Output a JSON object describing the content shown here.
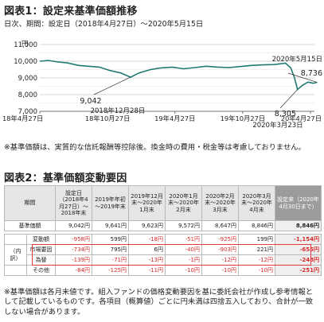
{
  "fig1": {
    "title": "図表1：設定来基準価額推移",
    "subtitle": "日次、期間：設定日（2018年4月27日）～2020年5月15日",
    "note": "※基準価額は、実質的な信託報酬等控除後。換金時の費用・税金等は考慮しておりません。"
  },
  "fig2": {
    "title": "図表2：基準価額変動要因",
    "footnote": "※基準価額は各月末値です。組入ファンドの価格変動要因を基に委託会社が作成し参考情報として記載しているものです。各項目（概算値）ごとに円未満は四捨五入しており、合計が一致しない場合があります。"
  },
  "chart_data": [
    {
      "type": "line",
      "ylabel": "円",
      "ylim": [
        7000,
        11000
      ],
      "y_ticks": [
        "7,000",
        "8,000",
        "9,000",
        "10,000",
        "11,000"
      ],
      "x_ticks": [
        "18年4月27日",
        "18年10月27日",
        "19年4月27日",
        "19年10月27日",
        "20年4月27日"
      ],
      "grid": true,
      "series": [
        {
          "color": "#1f7a72",
          "points": [
            [
              "2018-04-27",
              10000
            ],
            [
              "2018-05-20",
              10050
            ],
            [
              "2018-06-15",
              9950
            ],
            [
              "2018-07-10",
              9900
            ],
            [
              "2018-08-10",
              9750
            ],
            [
              "2018-09-05",
              9700
            ],
            [
              "2018-10-05",
              9650
            ],
            [
              "2018-11-01",
              9450
            ],
            [
              "2018-12-01",
              9300
            ],
            [
              "2018-12-28",
              9042
            ],
            [
              "2019-01-20",
              9300
            ],
            [
              "2019-02-20",
              9500
            ],
            [
              "2019-03-20",
              9600
            ],
            [
              "2019-04-20",
              9650
            ],
            [
              "2019-05-20",
              9550
            ],
            [
              "2019-06-20",
              9620
            ],
            [
              "2019-07-20",
              9700
            ],
            [
              "2019-08-20",
              9650
            ],
            [
              "2019-09-20",
              9620
            ],
            [
              "2019-10-20",
              9680
            ],
            [
              "2019-11-20",
              9750
            ],
            [
              "2019-12-20",
              9780
            ],
            [
              "2020-01-20",
              9800
            ],
            [
              "2020-02-20",
              9880
            ],
            [
              "2020-03-05",
              9600
            ],
            [
              "2020-03-15",
              9000
            ],
            [
              "2020-03-23",
              8305
            ],
            [
              "2020-04-05",
              8550
            ],
            [
              "2020-04-20",
              8750
            ],
            [
              "2020-05-05",
              8680
            ],
            [
              "2020-05-15",
              8736
            ]
          ]
        }
      ],
      "annotations": [
        {
          "text": "2020年5月15日",
          "value_label": "8,736"
        },
        {
          "text": "2018年12月28日",
          "value_label": "9,042"
        },
        {
          "text": "2020年3月23日",
          "value_label": "8,305"
        }
      ]
    },
    {
      "type": "table",
      "columns": [
        "期間",
        "設定日（2018年4月27日）～2018年末",
        "2019年年初～2019年末",
        "2019年12月末～2020年1月末",
        "2020年1月末～2020年2月末",
        "2020年2月末～2020年3月末",
        "2020年3月末～2020年4月末",
        "設定来（2020年4月30日まで）"
      ],
      "rows": [
        {
          "label": "基準価額",
          "group": "",
          "values": [
            "9,042円",
            "9,641円",
            "9,623円",
            "9,572円",
            "8,647円",
            "8,846円",
            "8,846円"
          ]
        },
        {
          "label": "変動額",
          "group": "",
          "values": [
            "-958円",
            "599円",
            "-18円",
            "-51円",
            "-925円",
            "199円",
            "-1,154円"
          ]
        },
        {
          "label": "市場要因",
          "group": "（内訳）",
          "values": [
            "-734円",
            "795円",
            "6円",
            "-40円",
            "-903円",
            "221円",
            "-655円"
          ]
        },
        {
          "label": "為替",
          "group": "",
          "values": [
            "-139円",
            "-71円",
            "-13円",
            "-1円",
            "-12円",
            "-12円",
            "-248円"
          ]
        },
        {
          "label": "その他",
          "group": "",
          "values": [
            "-84円",
            "-125円",
            "-11円",
            "-10円",
            "-10円",
            "-10円",
            "-251円"
          ]
        }
      ]
    }
  ]
}
